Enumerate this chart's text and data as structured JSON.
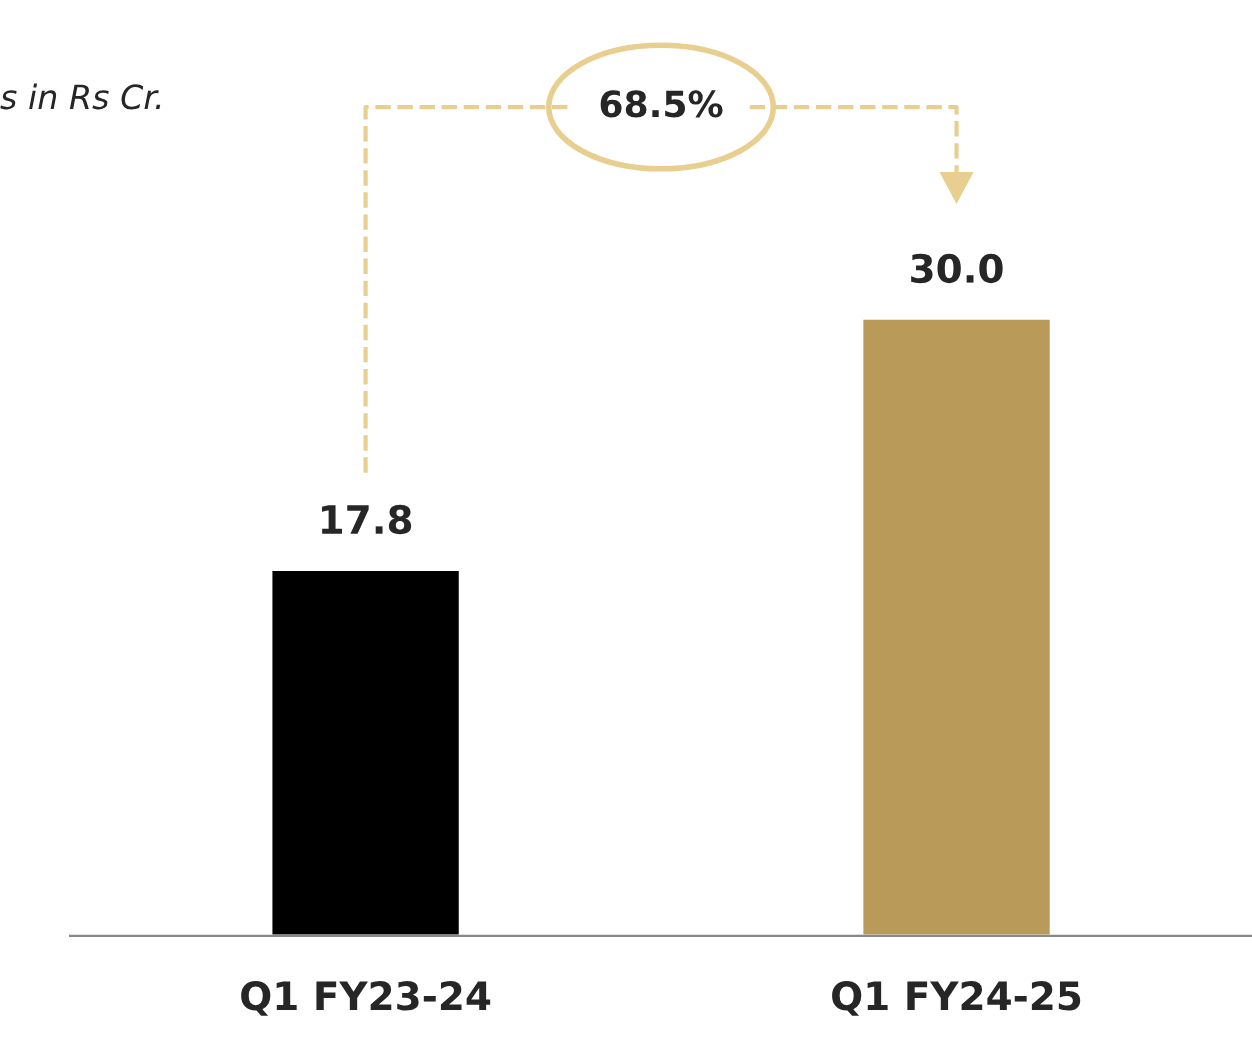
{
  "chart_data": {
    "type": "bar",
    "categories": [
      "Q1 FY23-24",
      "Q1 FY24-25"
    ],
    "values": [
      17.8,
      30.0
    ],
    "colors": [
      "#000000",
      "#b99a58"
    ],
    "value_labels": [
      "17.8",
      "30.0"
    ],
    "grid": false,
    "annotations": [
      "s in Rs Cr.",
      "68.5%"
    ]
  }
}
